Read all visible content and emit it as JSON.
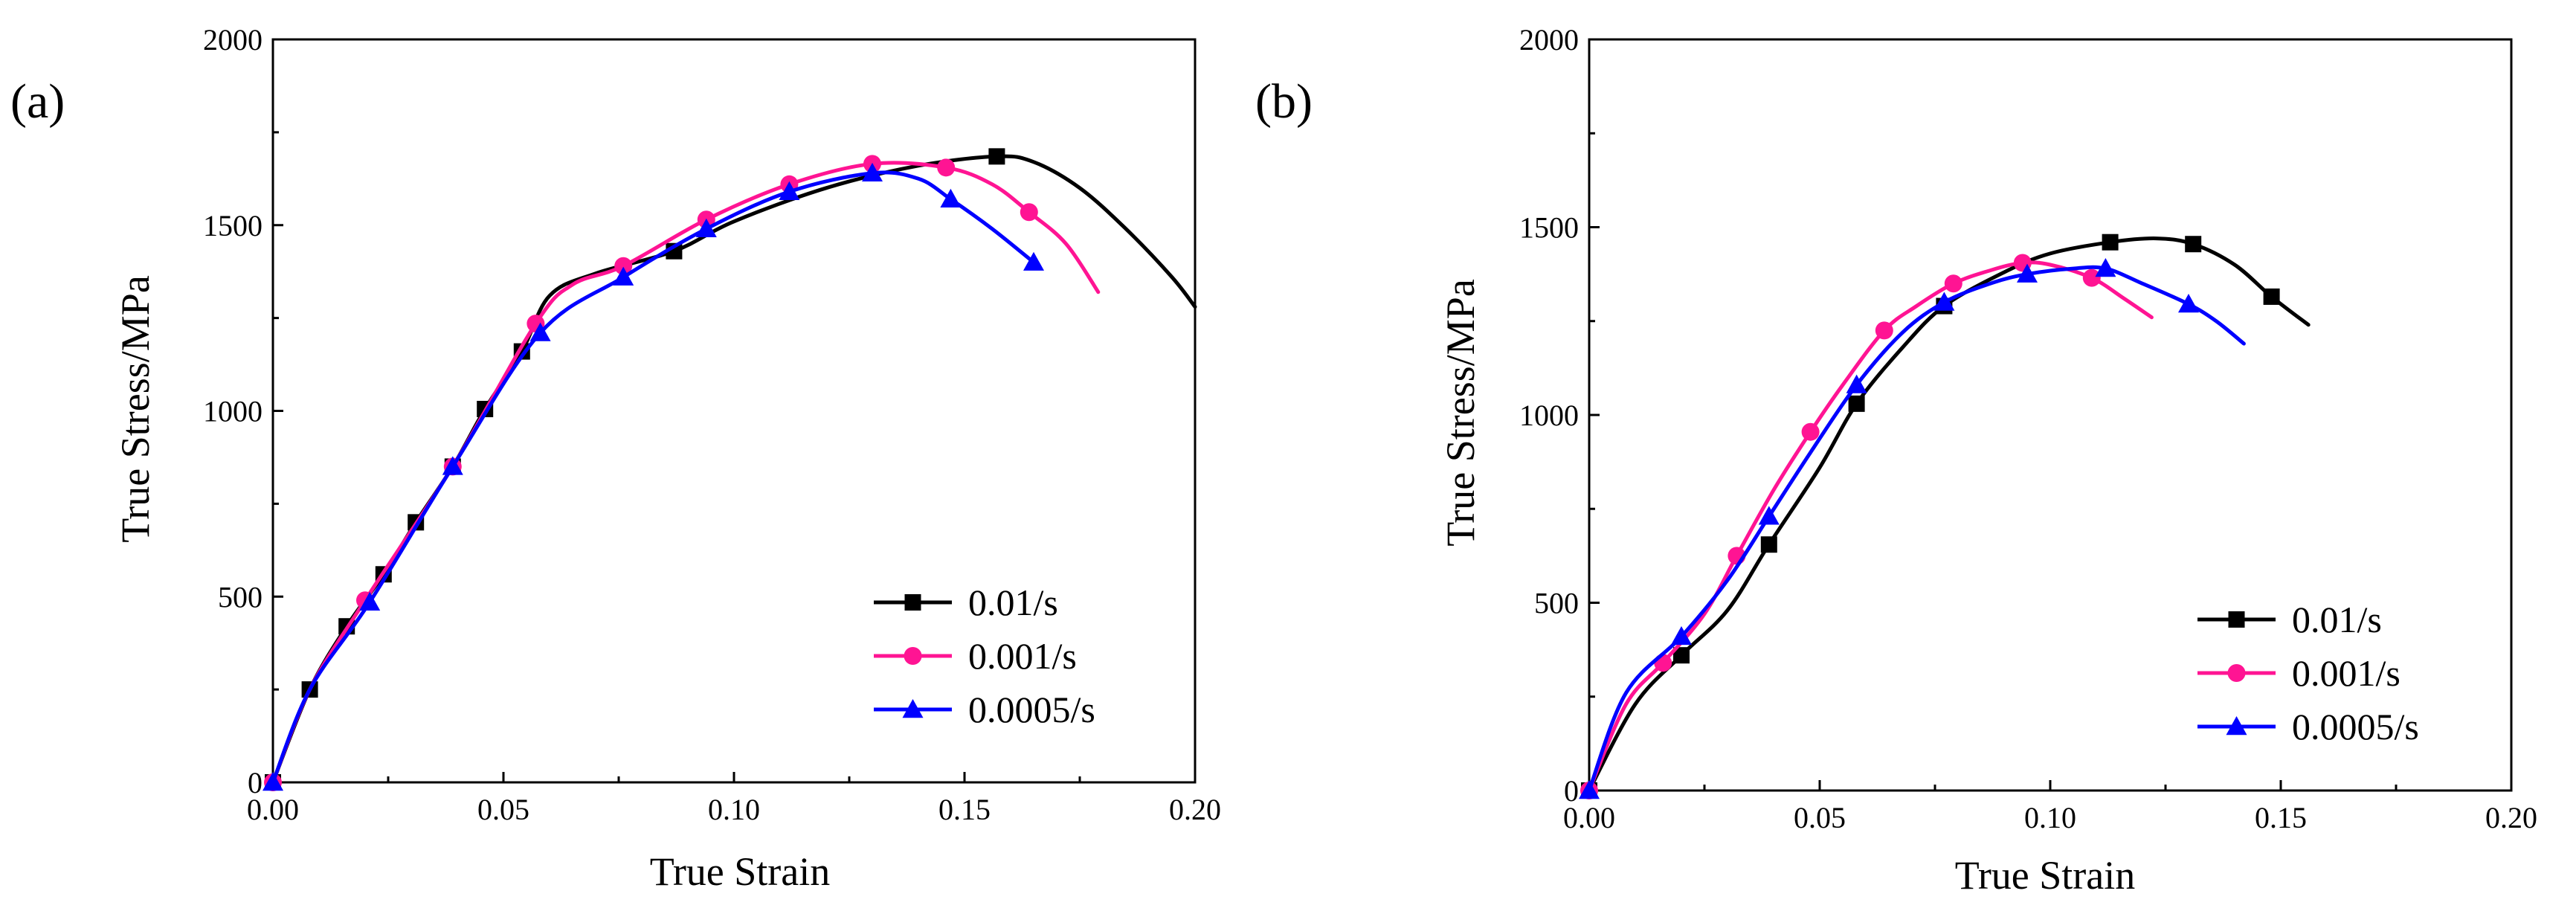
{
  "chart_data": [
    {
      "panel_label": "(a)",
      "type": "line",
      "xlabel": "True Strain",
      "ylabel": "True Stress/MPa",
      "xlim": [
        0,
        0.2
      ],
      "ylim": [
        0,
        2000
      ],
      "xticks": [
        "0.00",
        "0.05",
        "0.10",
        "0.15",
        "0.20"
      ],
      "yticks": [
        "0",
        "500",
        "1000",
        "1500",
        "2000"
      ],
      "grid": false,
      "legend_position": "bottom-right",
      "series": [
        {
          "name": "0.01/s",
          "color": "#000000",
          "marker": "square",
          "points": [
            [
              0,
              0
            ],
            [
              0.008,
              250
            ],
            [
              0.016,
              420
            ],
            [
              0.024,
              560
            ],
            [
              0.031,
              700
            ],
            [
              0.039,
              850
            ],
            [
              0.046,
              1005
            ],
            [
              0.054,
              1160
            ],
            [
              0.06,
              1310
            ],
            [
              0.07,
              1370
            ],
            [
              0.087,
              1430
            ],
            [
              0.1,
              1510
            ],
            [
              0.12,
              1600
            ],
            [
              0.14,
              1660
            ],
            [
              0.157,
              1685
            ],
            [
              0.165,
              1670
            ],
            [
              0.175,
              1600
            ],
            [
              0.185,
              1490
            ],
            [
              0.195,
              1360
            ],
            [
              0.2,
              1280
            ]
          ],
          "markers": [
            [
              0,
              0
            ],
            [
              0.008,
              250
            ],
            [
              0.016,
              420
            ],
            [
              0.024,
              560
            ],
            [
              0.031,
              700
            ],
            [
              0.039,
              850
            ],
            [
              0.046,
              1005
            ],
            [
              0.054,
              1160
            ],
            [
              0.087,
              1430
            ],
            [
              0.157,
              1685
            ]
          ]
        },
        {
          "name": "0.001/s",
          "color": "#ff1493",
          "marker": "circle",
          "points": [
            [
              0,
              0
            ],
            [
              0.008,
              250
            ],
            [
              0.02,
              490
            ],
            [
              0.039,
              850
            ],
            [
              0.057,
              1235
            ],
            [
              0.065,
              1340
            ],
            [
              0.076,
              1390
            ],
            [
              0.094,
              1515
            ],
            [
              0.112,
              1610
            ],
            [
              0.13,
              1665
            ],
            [
              0.146,
              1655
            ],
            [
              0.156,
              1610
            ],
            [
              0.164,
              1535
            ],
            [
              0.172,
              1450
            ],
            [
              0.179,
              1320
            ]
          ],
          "markers": [
            [
              0,
              0
            ],
            [
              0.02,
              490
            ],
            [
              0.039,
              850
            ],
            [
              0.057,
              1235
            ],
            [
              0.076,
              1390
            ],
            [
              0.094,
              1515
            ],
            [
              0.112,
              1610
            ],
            [
              0.13,
              1665
            ],
            [
              0.146,
              1655
            ],
            [
              0.164,
              1535
            ]
          ]
        },
        {
          "name": "0.0005/s",
          "color": "#0000ff",
          "marker": "triangle",
          "points": [
            [
              0,
              0
            ],
            [
              0.008,
              250
            ],
            [
              0.021,
              485
            ],
            [
              0.039,
              850
            ],
            [
              0.058,
              1210
            ],
            [
              0.076,
              1360
            ],
            [
              0.094,
              1490
            ],
            [
              0.112,
              1590
            ],
            [
              0.13,
              1640
            ],
            [
              0.14,
              1625
            ],
            [
              0.147,
              1570
            ],
            [
              0.156,
              1490
            ],
            [
              0.165,
              1400
            ]
          ],
          "markers": [
            [
              0,
              0
            ],
            [
              0.021,
              485
            ],
            [
              0.039,
              850
            ],
            [
              0.058,
              1210
            ],
            [
              0.076,
              1360
            ],
            [
              0.094,
              1490
            ],
            [
              0.112,
              1590
            ],
            [
              0.13,
              1640
            ],
            [
              0.147,
              1570
            ],
            [
              0.165,
              1400
            ]
          ]
        }
      ]
    },
    {
      "panel_label": "(b)",
      "type": "line",
      "xlabel": "True Strain",
      "ylabel": "True Stress/MPa",
      "xlim": [
        0,
        0.2
      ],
      "ylim": [
        0,
        2000
      ],
      "xticks": [
        "0.00",
        "0.05",
        "0.10",
        "0.15",
        "0.20"
      ],
      "yticks": [
        "0",
        "500",
        "1000",
        "1500",
        "2000"
      ],
      "grid": false,
      "legend_position": "bottom-right",
      "series": [
        {
          "name": "0.01/s",
          "color": "#000000",
          "marker": "square",
          "points": [
            [
              0,
              0
            ],
            [
              0.01,
              230
            ],
            [
              0.02,
              360
            ],
            [
              0.03,
              480
            ],
            [
              0.039,
              655
            ],
            [
              0.05,
              860
            ],
            [
              0.058,
              1030
            ],
            [
              0.068,
              1180
            ],
            [
              0.077,
              1290
            ],
            [
              0.09,
              1380
            ],
            [
              0.1,
              1430
            ],
            [
              0.113,
              1460
            ],
            [
              0.123,
              1470
            ],
            [
              0.131,
              1455
            ],
            [
              0.14,
              1400
            ],
            [
              0.148,
              1315
            ],
            [
              0.156,
              1240
            ]
          ],
          "markers": [
            [
              0,
              0
            ],
            [
              0.02,
              360
            ],
            [
              0.039,
              655
            ],
            [
              0.058,
              1030
            ],
            [
              0.077,
              1290
            ],
            [
              0.113,
              1460
            ],
            [
              0.131,
              1455
            ],
            [
              0.148,
              1315
            ]
          ]
        },
        {
          "name": "0.001/s",
          "color": "#ff1493",
          "marker": "circle",
          "points": [
            [
              0,
              0
            ],
            [
              0.008,
              230
            ],
            [
              0.016,
              340
            ],
            [
              0.025,
              470
            ],
            [
              0.032,
              625
            ],
            [
              0.04,
              800
            ],
            [
              0.048,
              955
            ],
            [
              0.055,
              1080
            ],
            [
              0.064,
              1225
            ],
            [
              0.071,
              1290
            ],
            [
              0.079,
              1350
            ],
            [
              0.087,
              1385
            ],
            [
              0.094,
              1405
            ],
            [
              0.1,
              1400
            ],
            [
              0.109,
              1365
            ],
            [
              0.116,
              1310
            ],
            [
              0.122,
              1260
            ]
          ],
          "markers": [
            [
              0,
              0
            ],
            [
              0.016,
              340
            ],
            [
              0.032,
              625
            ],
            [
              0.048,
              955
            ],
            [
              0.064,
              1225
            ],
            [
              0.079,
              1350
            ],
            [
              0.094,
              1405
            ],
            [
              0.109,
              1365
            ]
          ]
        },
        {
          "name": "0.0005/s",
          "color": "#0000ff",
          "marker": "triangle",
          "points": [
            [
              0,
              0
            ],
            [
              0.008,
              260
            ],
            [
              0.02,
              410
            ],
            [
              0.03,
              560
            ],
            [
              0.039,
              730
            ],
            [
              0.048,
              900
            ],
            [
              0.058,
              1080
            ],
            [
              0.068,
              1220
            ],
            [
              0.077,
              1300
            ],
            [
              0.087,
              1350
            ],
            [
              0.095,
              1375
            ],
            [
              0.105,
              1390
            ],
            [
              0.112,
              1390
            ],
            [
              0.12,
              1350
            ],
            [
              0.13,
              1295
            ],
            [
              0.136,
              1250
            ],
            [
              0.142,
              1190
            ]
          ],
          "markers": [
            [
              0,
              0
            ],
            [
              0.02,
              410
            ],
            [
              0.039,
              730
            ],
            [
              0.058,
              1080
            ],
            [
              0.077,
              1300
            ],
            [
              0.095,
              1375
            ],
            [
              0.112,
              1390
            ],
            [
              0.13,
              1295
            ]
          ]
        }
      ]
    }
  ]
}
